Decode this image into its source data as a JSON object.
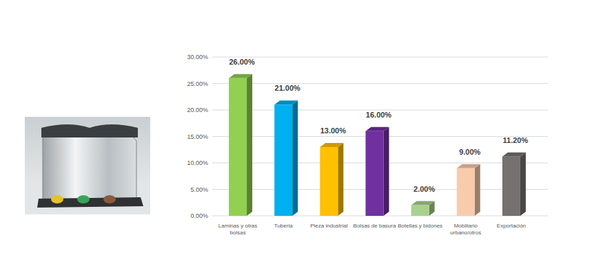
{
  "chart_data": {
    "type": "bar",
    "categories": [
      "Laminas y otras bolsas",
      "Tuberia",
      "Pieza industrial",
      "Bolsas de basura",
      "Botellas y bidones",
      "Mobiliario urbano/otros",
      "Exportación"
    ],
    "values": [
      26,
      21,
      13,
      16,
      2,
      9,
      11.2
    ],
    "value_labels": [
      "26.00%",
      "21.00%",
      "13.00%",
      "16.00%",
      "2.00%",
      "9.00%",
      "11.20%"
    ],
    "colors": [
      "#92d050",
      "#00b0f0",
      "#ffc000",
      "#7030a0",
      "#a9d18e",
      "#f8cbad",
      "#767171"
    ],
    "ylim": [
      0,
      30
    ],
    "yticks": [
      {
        "value": 0,
        "label": "0.00%"
      },
      {
        "value": 5,
        "label": "5.00%"
      },
      {
        "value": 10,
        "label": "10.00%"
      },
      {
        "value": 15,
        "label": "15.00%"
      },
      {
        "value": 20,
        "label": "20.00%"
      },
      {
        "value": 25,
        "label": "25.00%"
      },
      {
        "value": 30,
        "label": "30.00%"
      }
    ],
    "grid": true,
    "data_labels": true
  }
}
